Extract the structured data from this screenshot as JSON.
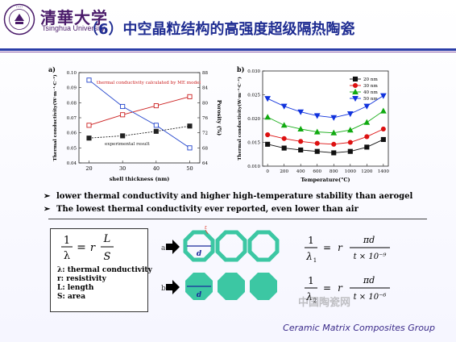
{
  "header": {
    "cn_name": "清華大学",
    "en_name": "Tsinghua University",
    "title": "（6）中空晶粒结构的高强度超级隔热陶瓷",
    "logo_text": "TSINGHUA UNIVERSITY 1911"
  },
  "chart_data": [
    {
      "panel_label": "a)",
      "type": "line",
      "xlabel": "shell thickness (nm)",
      "ylabel_left": "Thermal conductivity(W·m⁻¹·C⁻¹)",
      "ylabel_right": "Porosity (%)",
      "x_ticks": [
        "20",
        "30",
        "40",
        "50"
      ],
      "y_left_ticks": [
        "0.04",
        "0.05",
        "0.06",
        "0.07",
        "0.08",
        "0.09",
        "0.10"
      ],
      "y_right_ticks": [
        "64",
        "68",
        "72",
        "76",
        "80",
        "84",
        "88"
      ],
      "ylim_left": [
        0.04,
        0.1
      ],
      "ylim_right": [
        64,
        88
      ],
      "annotations": [
        "thermal conductivity calculated by ME model",
        "experimental result"
      ],
      "series": [
        {
          "name": "thermal conductivity calculated by ME model",
          "axis": "left",
          "color": "#cc2222",
          "marker": "square",
          "x": [
            20,
            30,
            40,
            50
          ],
          "y": [
            0.065,
            0.072,
            0.078,
            0.084
          ]
        },
        {
          "name": "experimental result",
          "axis": "left",
          "color": "#222222",
          "marker": "square",
          "x": [
            20,
            30,
            40,
            50
          ],
          "y": [
            0.0565,
            0.058,
            0.061,
            0.0645
          ]
        },
        {
          "name": "Porosity",
          "axis": "right",
          "color": "#2244cc",
          "marker": "square",
          "x": [
            20,
            30,
            40,
            50
          ],
          "y": [
            86,
            79,
            74,
            68
          ]
        }
      ]
    },
    {
      "panel_label": "b)",
      "type": "line",
      "xlabel": "Temperature(°C)",
      "ylabel": "Thermal conductivity(W·m⁻¹·C⁻¹)",
      "x_ticks": [
        "0",
        "200",
        "400",
        "600",
        "800",
        "1000",
        "1200",
        "1400"
      ],
      "y_ticks": [
        "0.010",
        "0.015",
        "0.020",
        "0.025",
        "0.030"
      ],
      "xlim": [
        0,
        1400
      ],
      "ylim": [
        0.01,
        0.03
      ],
      "legend_placement": "top-right",
      "x": [
        0,
        200,
        400,
        600,
        800,
        1000,
        1200,
        1400
      ],
      "series": [
        {
          "name": "20 nm",
          "color": "#111111",
          "marker": "square",
          "values": [
            0.0146,
            0.0138,
            0.0134,
            0.0131,
            0.0128,
            0.0131,
            0.014,
            0.0156
          ]
        },
        {
          "name": "30 nm",
          "color": "#dd1111",
          "marker": "circle",
          "values": [
            0.0166,
            0.0158,
            0.0152,
            0.0148,
            0.0146,
            0.015,
            0.0162,
            0.0178
          ]
        },
        {
          "name": "40 nm",
          "color": "#11aa11",
          "marker": "triangle",
          "values": [
            0.0203,
            0.0186,
            0.0178,
            0.0172,
            0.017,
            0.0176,
            0.0192,
            0.0216
          ]
        },
        {
          "name": "50 nm",
          "color": "#1133dd",
          "marker": "triangle-down",
          "values": [
            0.0242,
            0.0226,
            0.0214,
            0.0206,
            0.0202,
            0.021,
            0.0226,
            0.0248
          ]
        }
      ]
    }
  ],
  "bullets": [
    "lower thermal conductivity and higher high-temperature stability than aerogel",
    "The lowest thermal conductivity ever reported, even lower than air"
  ],
  "definitions": {
    "formula": {
      "lhs_num": "1",
      "lhs_den": "λ",
      "eq": "=",
      "r": "r",
      "num": "L",
      "den": "S"
    },
    "items": [
      "λ: thermal conductivity",
      "r: resistivity",
      "L: length",
      "S: area"
    ]
  },
  "diagram": {
    "row_labels": [
      "a",
      "b"
    ],
    "dim_label": "d",
    "thickness_label": "t",
    "colors": {
      "shell": "#3cc7a3",
      "hollow": "#ffffff"
    }
  },
  "equations": [
    {
      "num": "1",
      "lambda": "λ",
      "sub": "1",
      "eq": "=",
      "r": "r",
      "top": "πd",
      "bottom": "t × 10⁻⁹"
    },
    {
      "num": "1",
      "lambda": "λ",
      "sub": "2",
      "eq": "=",
      "r": "r",
      "top": "πd",
      "bottom": "t × 10⁻⁶"
    }
  ],
  "watermark": "中国陶瓷网",
  "footer": "Ceramic Matrix Composites Group"
}
